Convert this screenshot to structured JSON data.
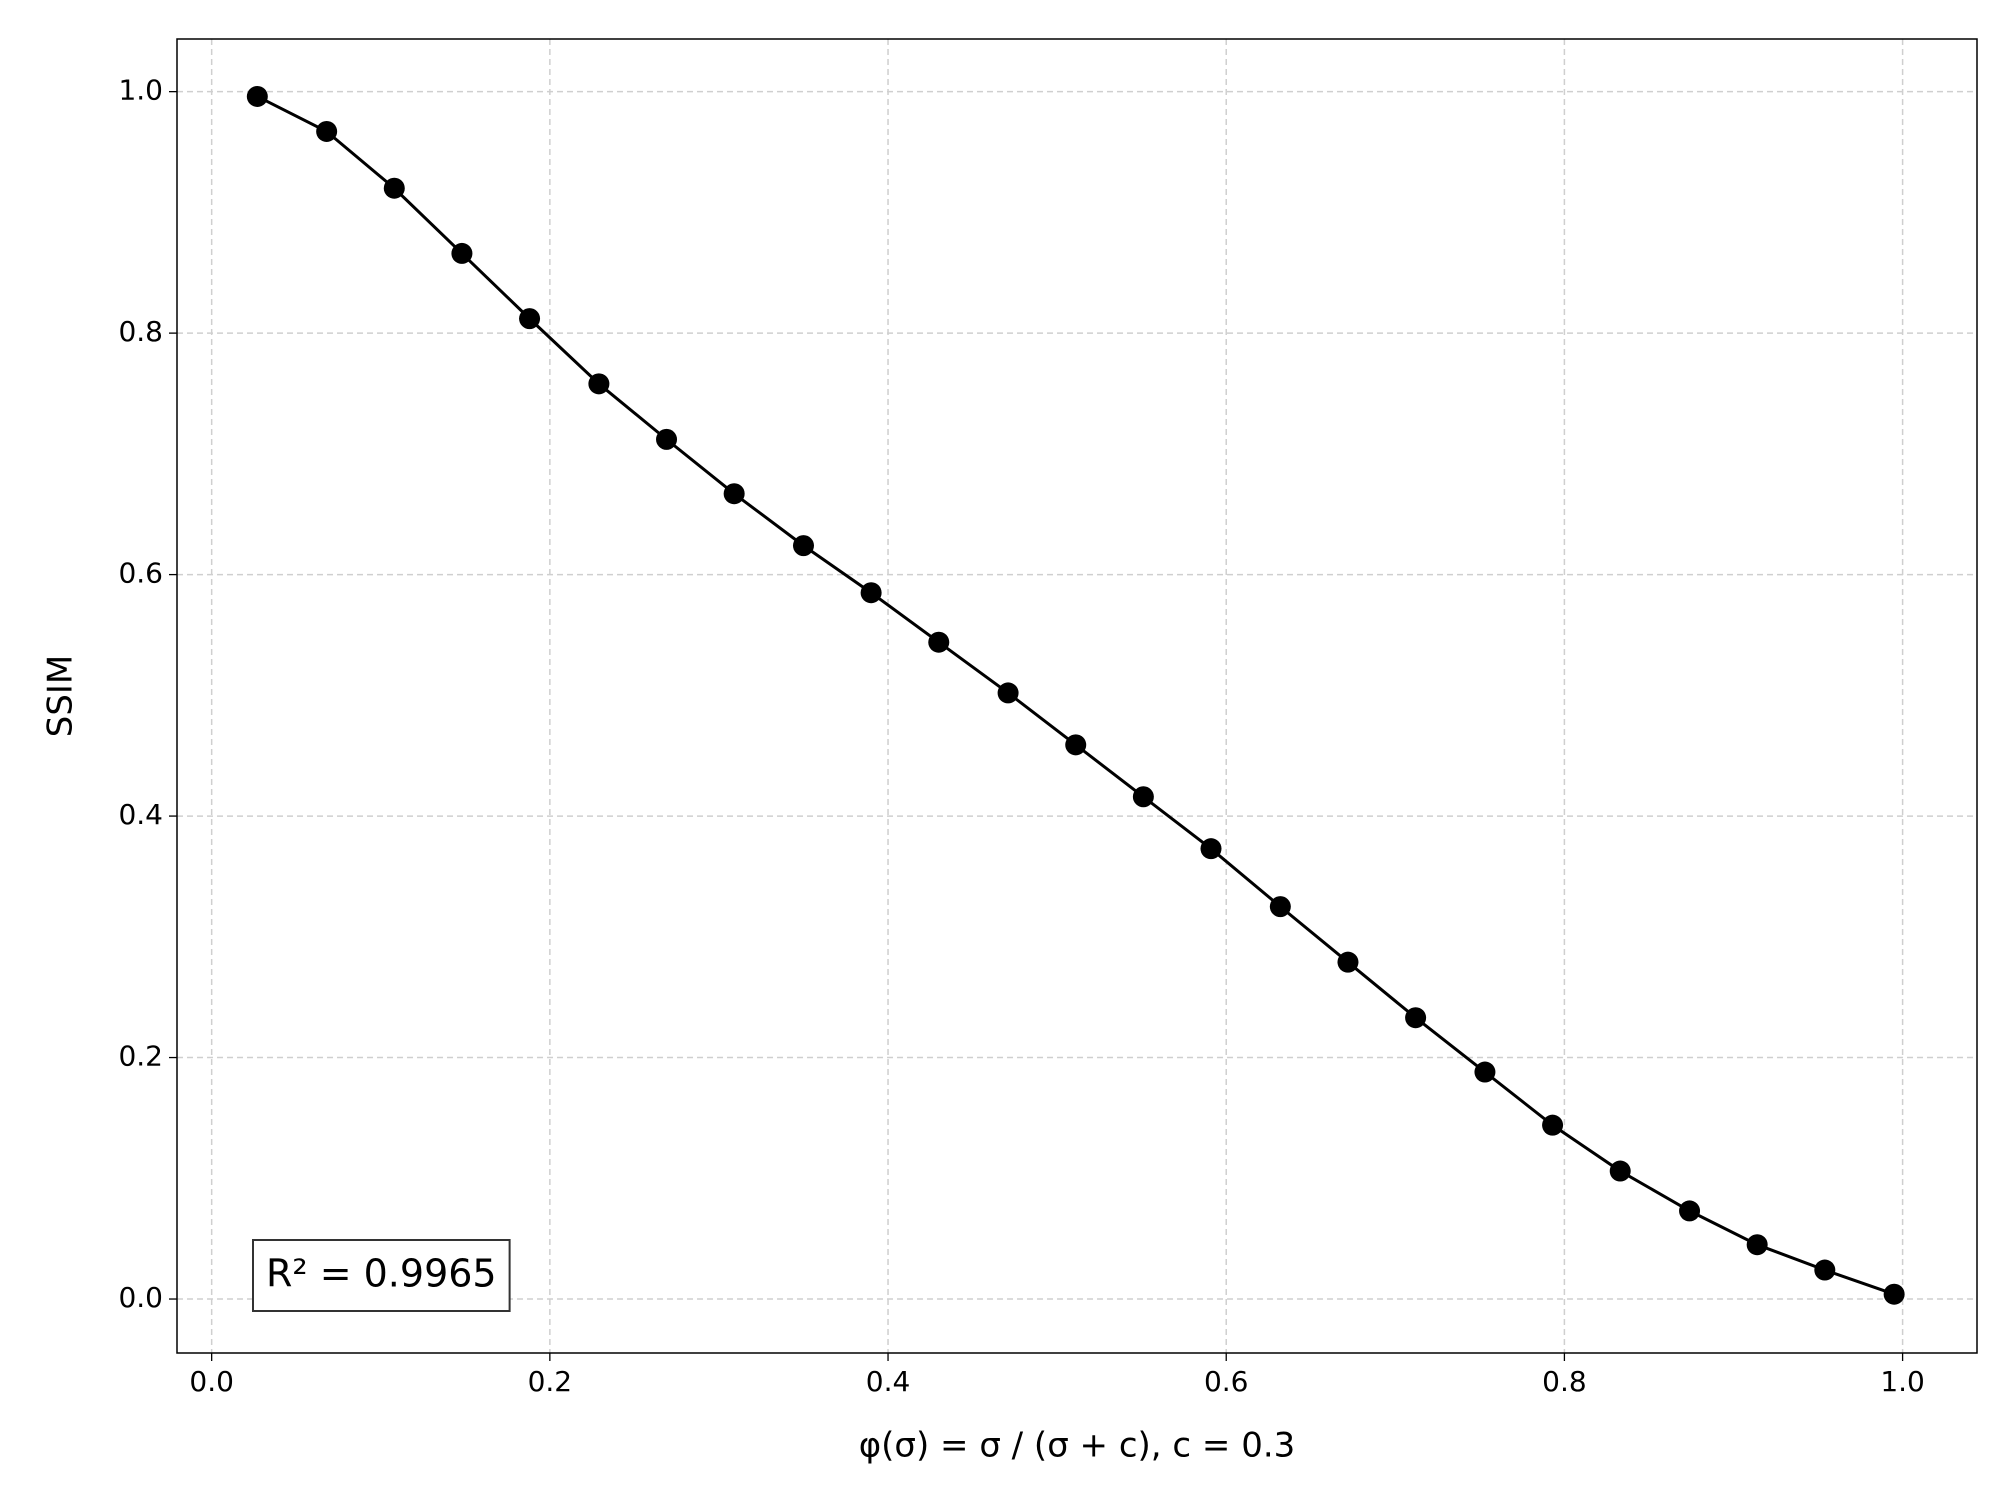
{
  "chart_data": {
    "type": "line",
    "xlabel": "φ(σ) = σ / (σ + c),  c = 0.3",
    "ylabel": "SSIM",
    "annotation": "R² = 0.9965",
    "x": [
      0.027,
      0.068,
      0.108,
      0.148,
      0.188,
      0.229,
      0.269,
      0.309,
      0.35,
      0.39,
      0.43,
      0.471,
      0.511,
      0.551,
      0.591,
      0.632,
      0.672,
      0.712,
      0.753,
      0.793,
      0.833,
      0.874,
      0.914,
      0.954,
      0.995
    ],
    "values": [
      0.996,
      0.967,
      0.92,
      0.866,
      0.812,
      0.758,
      0.712,
      0.667,
      0.624,
      0.585,
      0.544,
      0.502,
      0.459,
      0.416,
      0.373,
      0.325,
      0.279,
      0.233,
      0.188,
      0.144,
      0.106,
      0.073,
      0.045,
      0.024,
      0.004
    ],
    "color": "#000000",
    "xlim": [
      -0.0205,
      1.044
    ],
    "ylim": [
      -0.0447,
      1.0436
    ],
    "xticks": [
      {
        "value": 0,
        "label": "0.0"
      },
      0.2,
      0.4,
      0.6,
      0.8,
      {
        "value": 1,
        "label": "1.0"
      }
    ],
    "yticks": [
      {
        "value": 0,
        "label": "0.0"
      },
      0.2,
      0.4,
      0.6,
      0.8,
      {
        "value": 1,
        "label": "1.0"
      }
    ],
    "grid": true
  }
}
